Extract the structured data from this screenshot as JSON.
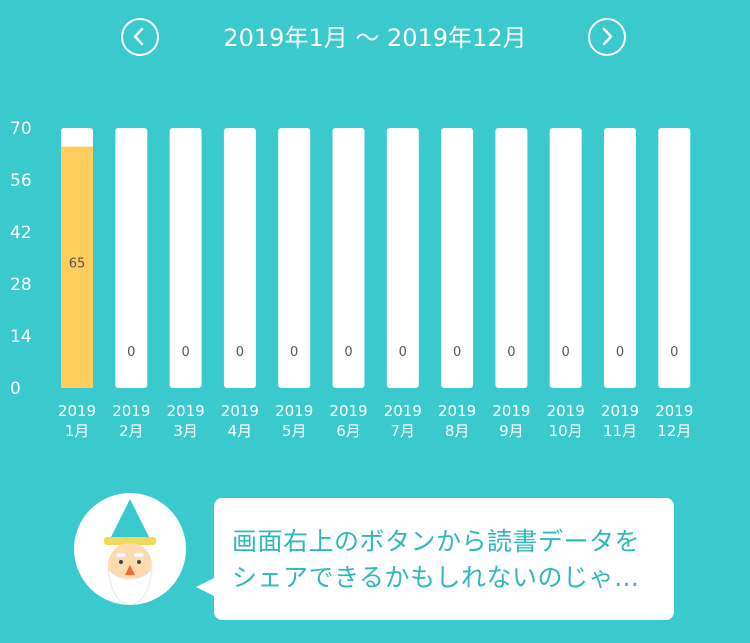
{
  "header": {
    "title": "2019年1月 〜 2019年12月",
    "prev_icon": "chevron-left-icon",
    "next_icon": "chevron-right-icon"
  },
  "chart_data": {
    "type": "bar",
    "categories": [
      [
        "2019",
        "1月"
      ],
      [
        "2019",
        "2月"
      ],
      [
        "2019",
        "3月"
      ],
      [
        "2019",
        "4月"
      ],
      [
        "2019",
        "5月"
      ],
      [
        "2019",
        "6月"
      ],
      [
        "2019",
        "7月"
      ],
      [
        "2019",
        "8月"
      ],
      [
        "2019",
        "9月"
      ],
      [
        "2019",
        "10月"
      ],
      [
        "2019",
        "11月"
      ],
      [
        "2019",
        "12月"
      ]
    ],
    "values": [
      65,
      0,
      0,
      0,
      0,
      0,
      0,
      0,
      0,
      0,
      0,
      0
    ],
    "value_labels": [
      "65",
      "0",
      "0",
      "0",
      "0",
      "0",
      "0",
      "0",
      "0",
      "0",
      "0",
      "0"
    ],
    "ylim": [
      0,
      70
    ],
    "yticks": [
      0,
      14,
      28,
      42,
      56,
      70
    ],
    "grid": false,
    "colors": {
      "filled": "#FFCD5E",
      "track": "#FFFFFF",
      "label": "#555555",
      "axis_text": "#FFFFFF"
    }
  },
  "message": {
    "text_line1": "画面右上のボタンから読書データを",
    "text_line2": "シェアできるかもしれないのじゃ…"
  },
  "avatar": {
    "icon": "wizard-avatar-icon"
  },
  "colors": {
    "background": "#3AC9CD",
    "bubble_text": "#2FB8BC"
  }
}
